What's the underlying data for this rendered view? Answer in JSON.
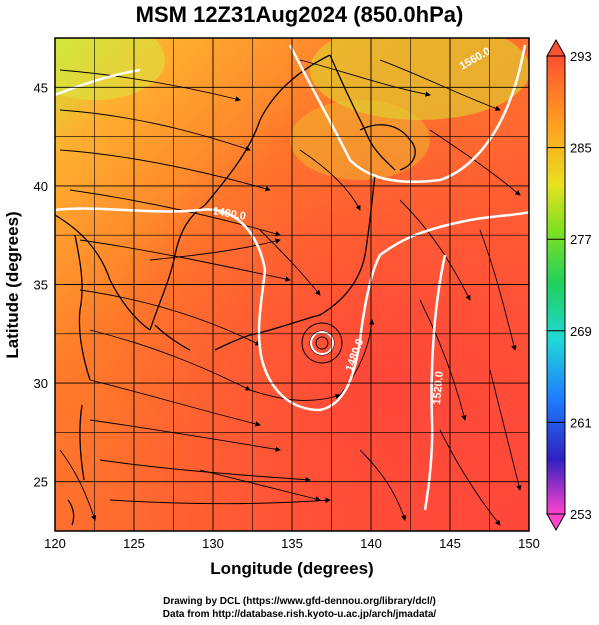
{
  "title": "MSM 12Z31Aug2024 (850.0hPa)",
  "x_axis": {
    "label": "Longitude (degrees)",
    "range": [
      120,
      150
    ],
    "ticks": [
      "120",
      "125",
      "130",
      "135",
      "140",
      "145",
      "150"
    ]
  },
  "y_axis": {
    "label": "Latitude  (degrees)",
    "range": [
      22.5,
      47.5
    ],
    "ticks": [
      "25",
      "30",
      "35",
      "40",
      "45"
    ]
  },
  "colorbar": {
    "min": 253,
    "max": 293,
    "tick_labels": [
      "293",
      "285",
      "277",
      "269",
      "261",
      "253"
    ],
    "colors": [
      "#ff44cc",
      "#2020d0",
      "#1ea0ff",
      "#20e0c0",
      "#30d040",
      "#b0e020",
      "#f0e020",
      "#ff9a10",
      "#ff5530"
    ]
  },
  "contour_labels": [
    "1480.0",
    "1480.0",
    "1520.0",
    "1560.0"
  ],
  "credits": [
    "Drawing by DCL (https://www.gfd-dennou.org/library/dcl/)",
    "Data from http://database.rish.kyoto-u.ac.jp/arch/jmadata/"
  ]
}
